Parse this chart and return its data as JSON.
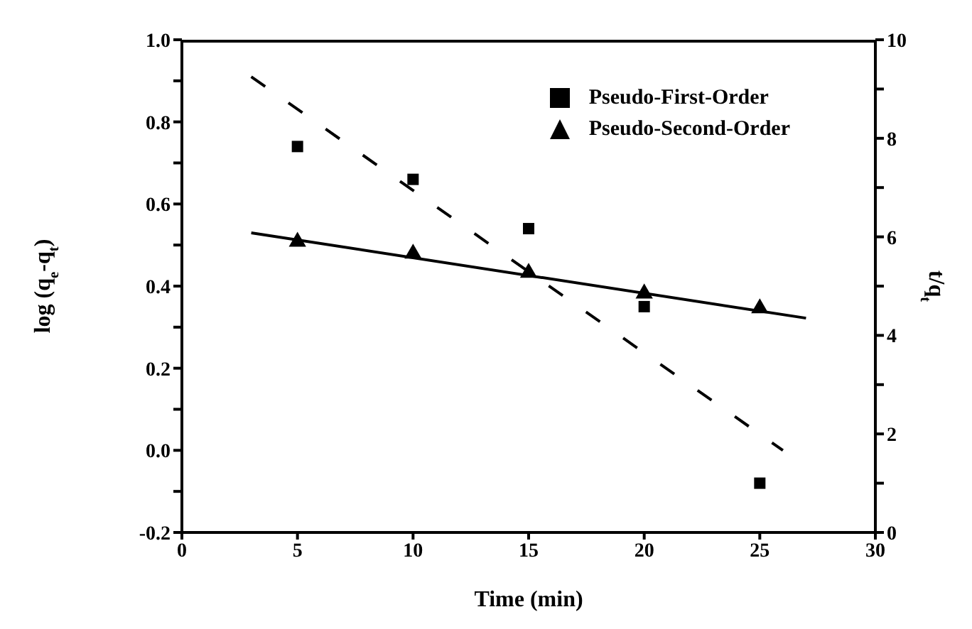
{
  "chart_data": {
    "type": "scatter",
    "xlabel": "Time (min)",
    "ylabel": "log (q$_{e}$-q$_{t}$)",
    "y2label": "t/q$_{t}$",
    "xlim": [
      0,
      30
    ],
    "xticks": [
      0,
      5,
      10,
      15,
      20,
      25,
      30
    ],
    "ylim": [
      -0.2,
      1.0
    ],
    "yticks": [
      {
        "value": -0.2,
        "label": "-0.2"
      },
      {
        "value": -0.1,
        "label": null
      },
      {
        "value": 0,
        "label": "0.0"
      },
      {
        "value": 0.1,
        "label": null
      },
      {
        "value": 0.2,
        "label": "0.2"
      },
      {
        "value": 0.3,
        "label": null
      },
      {
        "value": 0.4,
        "label": "0.4"
      },
      {
        "value": 0.5,
        "label": null
      },
      {
        "value": 0.6,
        "label": "0.6"
      },
      {
        "value": 0.7,
        "label": null
      },
      {
        "value": 0.8,
        "label": "0.8"
      },
      {
        "value": 0.9,
        "label": null
      },
      {
        "value": 1,
        "label": "1.0"
      }
    ],
    "y2lim": [
      0,
      10
    ],
    "y2ticks": [
      0,
      {
        "value": 1,
        "label": null
      },
      2,
      {
        "value": 3,
        "label": null
      },
      4,
      {
        "value": 5,
        "label": null
      },
      6,
      {
        "value": 7,
        "label": null
      },
      8,
      {
        "value": 9,
        "label": null
      },
      10
    ],
    "grid": false,
    "legend": "top right",
    "series": [
      {
        "type": "scatter",
        "name": "Pseudo-First-Order",
        "color": "#000000",
        "marker": "square",
        "x": [
          5,
          10,
          15,
          20,
          25
        ],
        "values": [
          0.74,
          0.66,
          0.54,
          0.35,
          -0.08
        ]
      },
      {
        "type": "scatter",
        "name": "Pseudo-Second-Order",
        "color": "#000000",
        "marker": "triangle",
        "axis": "y2",
        "x": [
          5,
          10,
          15,
          20,
          25
        ],
        "values": [
          5.9,
          5.66,
          5.27,
          4.85,
          4.55
        ]
      },
      {
        "type": "line",
        "color": "#000000",
        "marker": "none",
        "line_style": "dashed",
        "x": [
          3,
          26
        ],
        "values": [
          0.91,
          0.0
        ]
      },
      {
        "type": "line",
        "color": "#000000",
        "marker": "none",
        "line_style": "solid",
        "axis": "y2",
        "x": [
          3,
          27
        ],
        "values": [
          6.08,
          4.35
        ]
      }
    ]
  }
}
